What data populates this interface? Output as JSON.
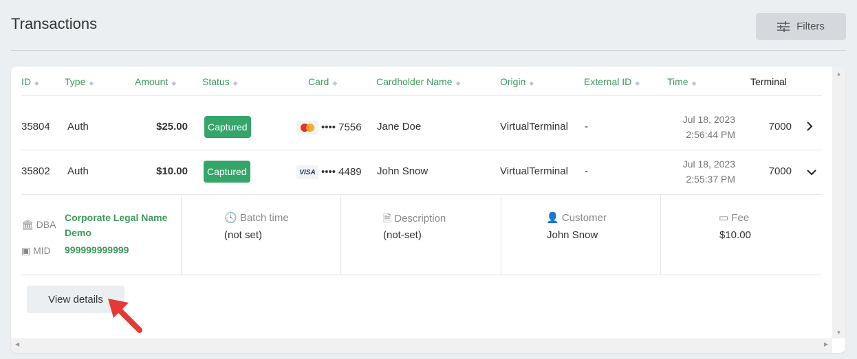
{
  "page": {
    "title": "Transactions",
    "filters_label": "Filters"
  },
  "table": {
    "headers": [
      "ID",
      "Type",
      "Amount",
      "Status",
      "Card",
      "Cardholder Name",
      "Origin",
      "External ID",
      "Time",
      "Terminal"
    ],
    "rows": [
      {
        "id": "35804",
        "type": "Auth",
        "amount": "$25.00",
        "status": "Captured",
        "card_brand": "mastercard",
        "card_last4": "•••• 7556",
        "cardholder": "Jane Doe",
        "origin": "VirtualTerminal",
        "external_id": "-",
        "date": "Jul 18, 2023",
        "time": "2:56:44 PM",
        "terminal": "7000",
        "expanded": false
      },
      {
        "id": "35802",
        "type": "Auth",
        "amount": "$10.00",
        "status": "Captured",
        "card_brand": "VISA",
        "card_last4": "•••• 4489",
        "cardholder": "John Snow",
        "origin": "VirtualTerminal",
        "external_id": "-",
        "date": "Jul 18, 2023",
        "time": "2:55:37 PM",
        "terminal": "7000",
        "expanded": true
      }
    ]
  },
  "details": {
    "dba_label": "DBA",
    "dba_value_line1": "Corporate Legal Name",
    "dba_value_line2": "Demo",
    "mid_label": "MID",
    "mid_value": "999999999999",
    "batch_label": "Batch time",
    "batch_value": "(not set)",
    "description_label": "Description",
    "description_value": "(not-set)",
    "customer_label": "Customer",
    "customer_value": "John Snow",
    "fee_label": "Fee",
    "fee_value": "$10.00",
    "view_details_label": "View details"
  },
  "colors": {
    "accent": "#3d9a5c",
    "badge": "#34a66a",
    "annotation_arrow": "#e53935"
  }
}
